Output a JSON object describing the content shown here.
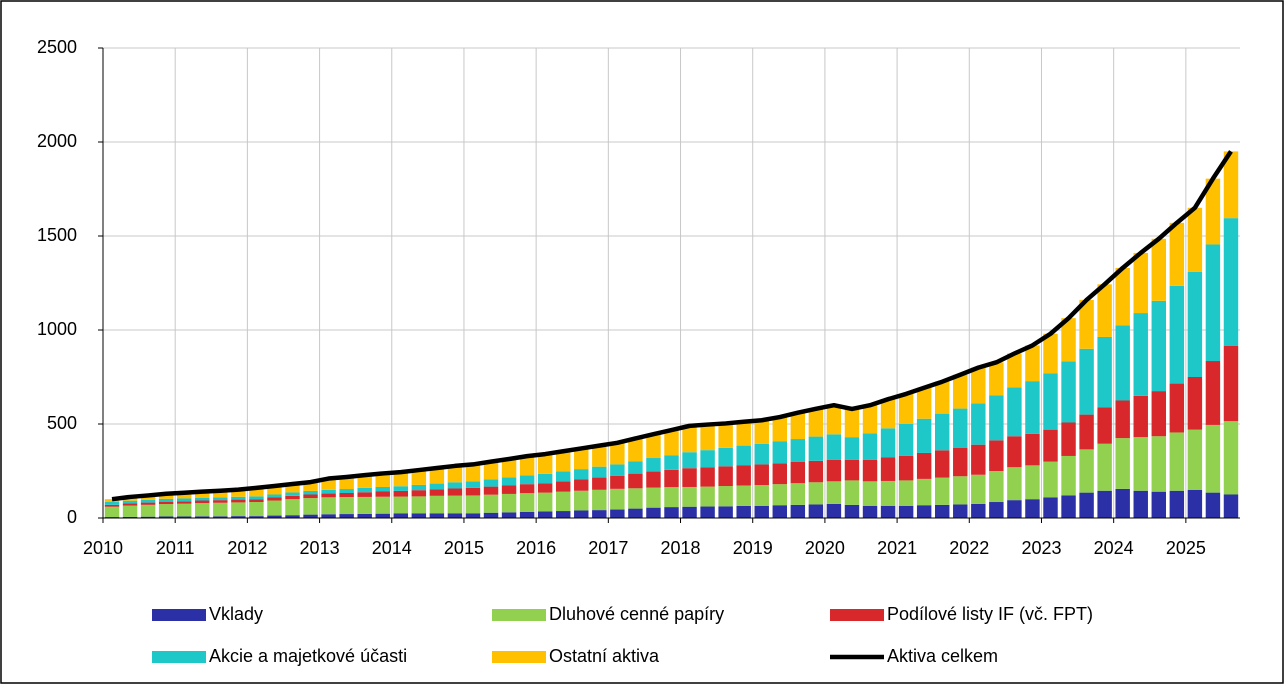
{
  "chart_data": {
    "type": "bar",
    "x": [
      2010,
      2010.25,
      2010.5,
      2010.75,
      2011,
      2011.25,
      2011.5,
      2011.75,
      2012,
      2012.25,
      2012.5,
      2012.75,
      2013,
      2013.25,
      2013.5,
      2013.75,
      2014,
      2014.25,
      2014.5,
      2014.75,
      2015,
      2015.25,
      2015.5,
      2015.75,
      2016,
      2016.25,
      2016.5,
      2016.75,
      2017,
      2017.25,
      2017.5,
      2017.75,
      2018,
      2018.25,
      2018.5,
      2018.75,
      2019,
      2019.25,
      2019.5,
      2019.75,
      2020,
      2020.25,
      2020.5,
      2020.75,
      2021,
      2021.25,
      2021.5,
      2021.75,
      2022,
      2022.25,
      2022.5,
      2022.75,
      2023,
      2023.25,
      2023.5,
      2023.75,
      2024,
      2024.25,
      2024.5,
      2024.75,
      2025,
      2025.25,
      2025.5
    ],
    "series": [
      {
        "name": "Vklady",
        "color": "#2b30a6",
        "values": [
          5,
          6,
          7,
          8,
          8,
          9,
          9,
          10,
          10,
          13,
          15,
          18,
          20,
          21,
          22,
          23,
          24,
          24,
          25,
          25,
          25,
          28,
          30,
          33,
          35,
          37,
          40,
          42,
          45,
          50,
          55,
          58,
          60,
          61,
          62,
          64,
          65,
          68,
          70,
          72,
          75,
          70,
          65,
          65,
          65,
          68,
          70,
          72,
          75,
          85,
          95,
          100,
          110,
          120,
          135,
          145,
          155,
          145,
          140,
          145,
          150,
          135,
          125
        ]
      },
      {
        "name": "Dluhové cenné papíry",
        "color": "#92d050",
        "values": [
          55,
          60,
          63,
          66,
          68,
          70,
          72,
          73,
          75,
          80,
          85,
          88,
          90,
          90,
          90,
          90,
          90,
          91,
          93,
          94,
          95,
          96,
          98,
          99,
          100,
          103,
          105,
          108,
          110,
          108,
          107,
          106,
          105,
          106,
          108,
          109,
          110,
          112,
          115,
          118,
          120,
          130,
          130,
          132,
          135,
          140,
          145,
          150,
          155,
          165,
          175,
          180,
          190,
          210,
          230,
          250,
          270,
          285,
          295,
          310,
          320,
          360,
          390
        ]
      },
      {
        "name": "Podílové listy IF (vč. FPT)",
        "color": "#d9282b",
        "values": [
          10,
          11,
          12,
          13,
          13,
          14,
          14,
          15,
          15,
          16,
          18,
          19,
          20,
          22,
          25,
          28,
          30,
          33,
          35,
          38,
          40,
          43,
          45,
          48,
          50,
          55,
          60,
          65,
          70,
          78,
          85,
          92,
          100,
          103,
          105,
          108,
          110,
          111,
          113,
          114,
          115,
          110,
          115,
          125,
          130,
          138,
          145,
          152,
          160,
          163,
          165,
          168,
          170,
          178,
          185,
          193,
          200,
          220,
          240,
          260,
          280,
          340,
          400
        ]
      },
      {
        "name": "Akcie a majetkové účasti",
        "color": "#1ec8c8",
        "values": [
          15,
          15,
          15,
          15,
          15,
          15,
          15,
          15,
          15,
          16,
          18,
          19,
          20,
          21,
          23,
          24,
          25,
          28,
          30,
          33,
          35,
          39,
          43,
          47,
          50,
          53,
          55,
          58,
          60,
          66,
          72,
          78,
          85,
          91,
          98,
          104,
          110,
          116,
          122,
          129,
          135,
          120,
          140,
          155,
          170,
          182,
          195,
          208,
          220,
          240,
          260,
          280,
          300,
          325,
          350,
          375,
          400,
          440,
          480,
          520,
          560,
          620,
          680
        ]
      },
      {
        "name": "Ostatní aktiva",
        "color": "#ffc000",
        "values": [
          15,
          20,
          23,
          27,
          30,
          32,
          35,
          38,
          45,
          45,
          45,
          47,
          60,
          64,
          68,
          72,
          75,
          79,
          83,
          87,
          90,
          94,
          98,
          102,
          105,
          107,
          110,
          112,
          115,
          121,
          127,
          134,
          140,
          136,
          130,
          127,
          125,
          130,
          140,
          148,
          155,
          150,
          150,
          155,
          160,
          165,
          170,
          180,
          190,
          175,
          180,
          190,
          210,
          230,
          260,
          280,
          305,
          320,
          330,
          335,
          340,
          350,
          355
        ]
      },
      {
        "name": "Aktiva celkem",
        "color": "#000000",
        "type": "line",
        "values": [
          100,
          112,
          120,
          129,
          134,
          140,
          145,
          151,
          160,
          170,
          181,
          191,
          210,
          218,
          228,
          237,
          244,
          255,
          266,
          277,
          285,
          300,
          314,
          329,
          340,
          355,
          370,
          385,
          400,
          423,
          446,
          468,
          490,
          497,
          503,
          512,
          520,
          537,
          560,
          581,
          600,
          580,
          600,
          632,
          660,
          693,
          725,
          762,
          800,
          828,
          875,
          918,
          980,
          1063,
          1160,
          1243,
          1330,
          1410,
          1485,
          1570,
          1650,
          1805,
          1950
        ]
      }
    ],
    "xlim": [
      2010,
      2025.75
    ],
    "xticks": [
      2010,
      2011,
      2012,
      2013,
      2014,
      2015,
      2016,
      2017,
      2018,
      2019,
      2020,
      2021,
      2022,
      2023,
      2024,
      2025
    ],
    "ylim": [
      0,
      2500
    ],
    "yticks": [
      0,
      500,
      1000,
      1500,
      2000,
      2500
    ],
    "grid": true,
    "stacked": true,
    "legend": "bottom"
  }
}
